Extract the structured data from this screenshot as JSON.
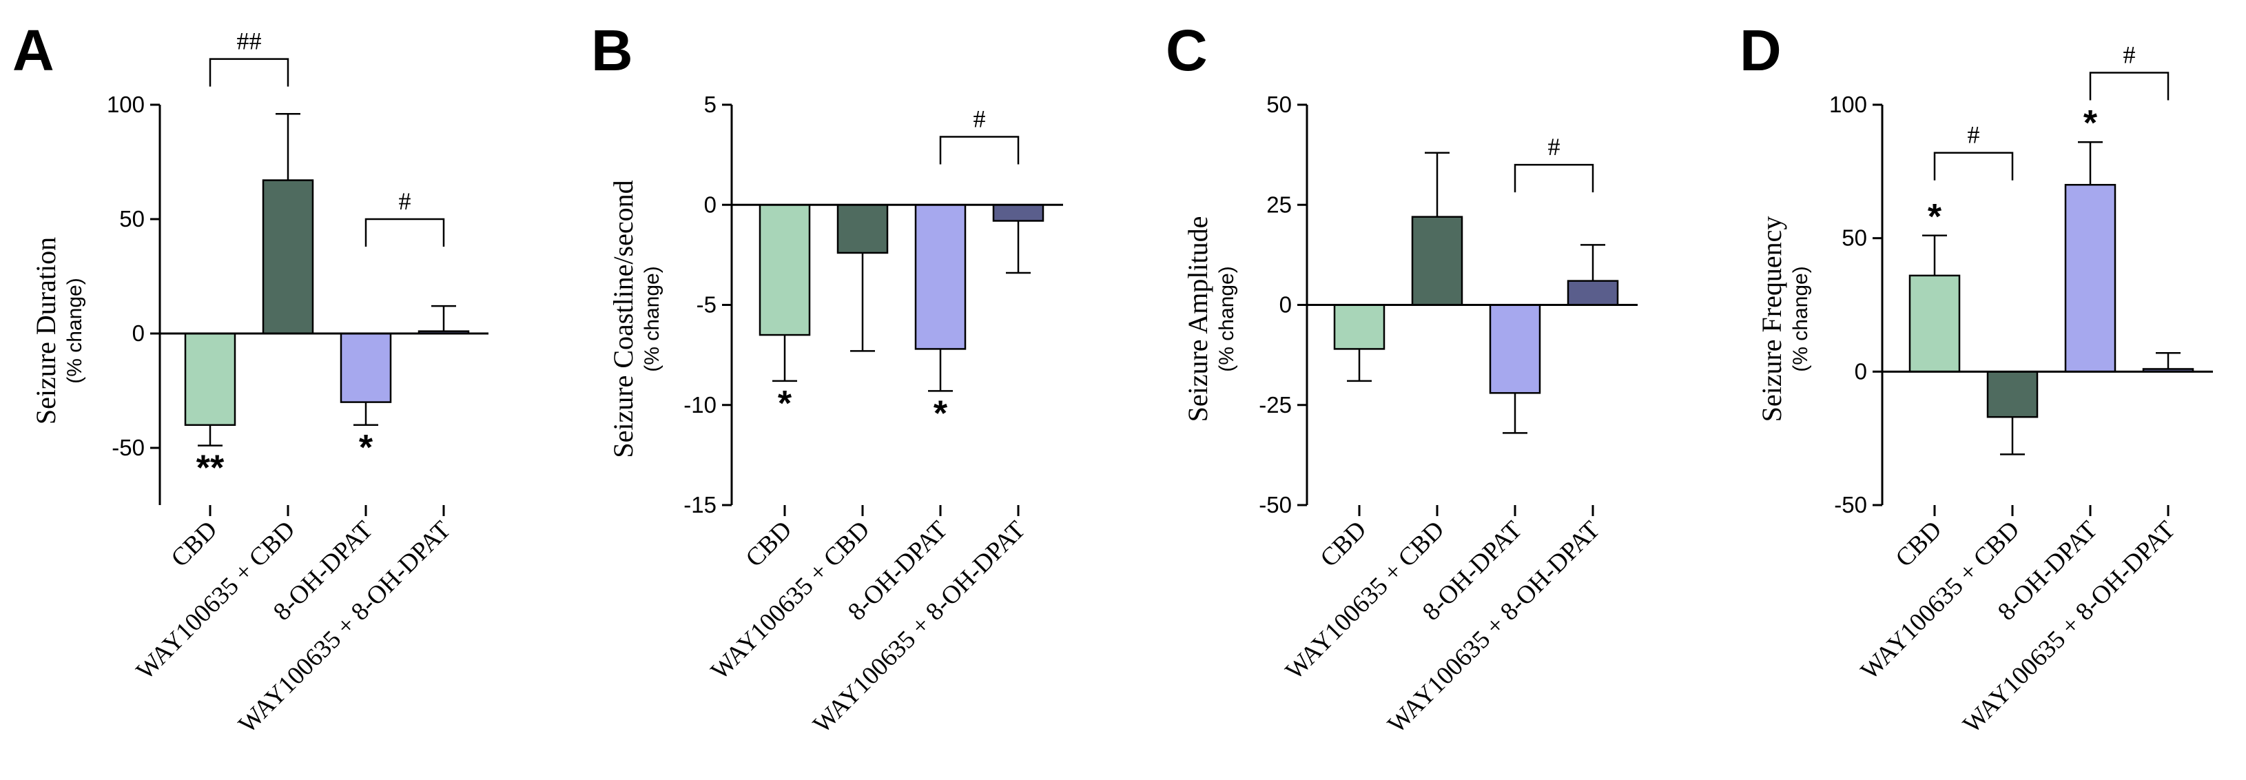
{
  "figure": {
    "description_labels": {
      "category_names": [
        "CBD",
        "WAY100635 + CBD",
        "8-OH-DPAT",
        "WAY100635 + 8-OH-DPAT"
      ]
    },
    "colors": {
      "cbd": "#a8d5b8",
      "way_cbd": "#4f6b5f",
      "dpat": "#a6a8ee",
      "way_dpat": "#5a5e8c"
    }
  },
  "chart_data": [
    {
      "panel": "A",
      "type": "bar",
      "ylabel": "Seizure Duration",
      "ylabel_sub": "(% change)",
      "ylim": [
        -75,
        100
      ],
      "yticks": [
        -50,
        0,
        50,
        100
      ],
      "tick_labels": [
        "-50",
        "0",
        "50",
        "100"
      ],
      "categories": [
        "CBD",
        "WAY100635 + CBD",
        "8-OH-DPAT",
        "WAY100635 + 8-OH-DPAT"
      ],
      "values": [
        -40,
        67,
        -30,
        1
      ],
      "errors": [
        9,
        29,
        10,
        11
      ],
      "markers": [
        {
          "bar": 0,
          "text": "**",
          "side": "below"
        },
        {
          "bar": 2,
          "text": "*",
          "side": "below"
        }
      ],
      "brackets": [
        {
          "from": 0,
          "to": 1,
          "text": "##",
          "level": 120
        },
        {
          "from": 2,
          "to": 3,
          "text": "#",
          "level": 50
        }
      ]
    },
    {
      "panel": "B",
      "type": "bar",
      "ylabel": "Seizure Coastline/second",
      "ylabel_sub": "(% change)",
      "ylim": [
        -15,
        5
      ],
      "yticks": [
        -15,
        -10,
        -5,
        0,
        5
      ],
      "tick_labels": [
        "-15",
        "-10",
        "-5",
        "0",
        "5"
      ],
      "categories": [
        "CBD",
        "WAY100635 + CBD",
        "8-OH-DPAT",
        "WAY100635 + 8-OH-DPAT"
      ],
      "values": [
        -6.5,
        -2.4,
        -7.2,
        -0.8
      ],
      "errors": [
        2.3,
        4.9,
        2.1,
        2.6
      ],
      "markers": [
        {
          "bar": 0,
          "text": "*",
          "side": "below"
        },
        {
          "bar": 2,
          "text": "*",
          "side": "below"
        }
      ],
      "brackets": [
        {
          "from": 2,
          "to": 3,
          "text": "#",
          "level": 3.4
        }
      ]
    },
    {
      "panel": "C",
      "type": "bar",
      "ylabel": "Seizure Amplitude",
      "ylabel_sub": "(% change)",
      "ylim": [
        -50,
        50
      ],
      "yticks": [
        -50,
        -25,
        0,
        25,
        50
      ],
      "tick_labels": [
        "-50",
        "-25",
        "0",
        "25",
        "50"
      ],
      "categories": [
        "CBD",
        "WAY100635 + CBD",
        "8-OH-DPAT",
        "WAY100635 + 8-OH-DPAT"
      ],
      "values": [
        -11,
        22,
        -22,
        6
      ],
      "errors": [
        8,
        16,
        10,
        9
      ],
      "markers": [],
      "brackets": [
        {
          "from": 2,
          "to": 3,
          "text": "#",
          "level": 35
        }
      ]
    },
    {
      "panel": "D",
      "type": "bar",
      "ylabel": "Seizure Frequency",
      "ylabel_sub": "(% change)",
      "ylim": [
        -50,
        100
      ],
      "yticks": [
        -50,
        0,
        50,
        100
      ],
      "tick_labels": [
        "-50",
        "0",
        "50",
        "100"
      ],
      "categories": [
        "CBD",
        "WAY100635 + CBD",
        "8-OH-DPAT",
        "WAY100635 + 8-OH-DPAT"
      ],
      "values": [
        36,
        -17,
        70,
        1
      ],
      "errors": [
        15,
        14,
        16,
        6
      ],
      "markers": [
        {
          "bar": 0,
          "text": "*",
          "side": "above"
        },
        {
          "bar": 2,
          "text": "*",
          "side": "above"
        }
      ],
      "brackets": [
        {
          "from": 0,
          "to": 1,
          "text": "#",
          "level": 82
        },
        {
          "from": 2,
          "to": 3,
          "text": "#",
          "level": 112
        }
      ]
    }
  ]
}
